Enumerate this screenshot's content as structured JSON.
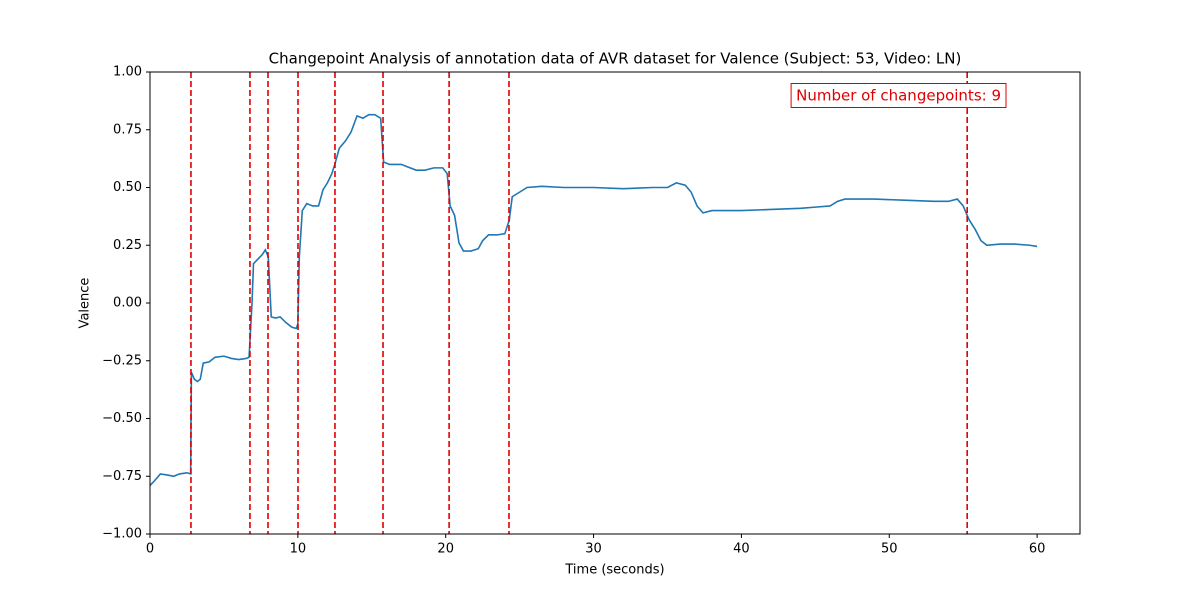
{
  "chart_data": {
    "type": "line",
    "title": "Changepoint Analysis of annotation data of AVR dataset for Valence (Subject: 53, Video: LN)",
    "xlabel": "Time (seconds)",
    "ylabel": "Valence",
    "annotation": "Number of changepoints: 9",
    "annotation_color": "#e00000",
    "xlim": [
      0,
      62.9
    ],
    "ylim": [
      -1,
      1
    ],
    "xticks": [
      0,
      10,
      20,
      30,
      40,
      50,
      60
    ],
    "yticks": [
      {
        "value": -1,
        "label": "−1.00"
      },
      {
        "value": -0.75,
        "label": "−0.75"
      },
      {
        "value": -0.5,
        "label": "−0.50"
      },
      {
        "value": -0.25,
        "label": "−0.25"
      },
      {
        "value": 0,
        "label": "0.00"
      },
      {
        "value": 0.25,
        "label": "0.25"
      },
      {
        "value": 0.5,
        "label": "0.50"
      },
      {
        "value": 0.75,
        "label": "0.75"
      },
      {
        "value": 1,
        "label": "1.00"
      }
    ],
    "changepoints": [
      2.77,
      6.76,
      7.98,
      10.01,
      12.51,
      15.76,
      20.23,
      24.28,
      55.27
    ],
    "changepoint_color": "#e00000",
    "x": [
      0,
      0.3,
      0.7,
      1.2,
      1.6,
      2.0,
      2.5,
      2.75,
      2.8,
      3.0,
      3.2,
      3.4,
      3.6,
      4.0,
      4.4,
      5.0,
      5.5,
      6.0,
      6.5,
      6.7,
      6.9,
      7.0,
      7.3,
      7.6,
      7.8,
      8.0,
      8.2,
      8.5,
      8.8,
      9.2,
      9.6,
      9.9,
      10.0,
      10.1,
      10.3,
      10.6,
      11.0,
      11.4,
      11.7,
      12.0,
      12.3,
      12.5,
      12.8,
      13.2,
      13.6,
      14.0,
      14.4,
      14.8,
      15.2,
      15.6,
      15.8,
      16.2,
      16.6,
      17.0,
      17.4,
      18.0,
      18.6,
      19.2,
      19.8,
      20.1,
      20.3,
      20.6,
      20.9,
      21.2,
      21.7,
      22.2,
      22.5,
      22.9,
      23.5,
      24.0,
      24.3,
      24.5,
      25.0,
      25.5,
      26.5,
      28,
      30,
      32,
      34,
      35,
      35.6,
      36.2,
      36.6,
      37.0,
      37.4,
      38,
      40,
      42,
      44,
      45,
      46,
      46.5,
      47,
      49,
      51,
      53,
      54,
      54.6,
      55.0,
      55.4,
      55.8,
      56.2,
      56.6,
      57.5,
      58.5,
      59.5,
      60
    ],
    "series": [
      {
        "name": "Valence",
        "color": "#1f77b4",
        "values": [
          -0.79,
          -0.77,
          -0.74,
          -0.745,
          -0.75,
          -0.74,
          -0.735,
          -0.74,
          -0.3,
          -0.33,
          -0.34,
          -0.33,
          -0.26,
          -0.255,
          -0.235,
          -0.23,
          -0.24,
          -0.245,
          -0.24,
          -0.235,
          0.0,
          0.17,
          0.19,
          0.21,
          0.23,
          0.2,
          -0.06,
          -0.065,
          -0.06,
          -0.085,
          -0.105,
          -0.11,
          -0.09,
          0.2,
          0.4,
          0.43,
          0.42,
          0.42,
          0.49,
          0.52,
          0.56,
          0.6,
          0.67,
          0.7,
          0.74,
          0.81,
          0.8,
          0.815,
          0.815,
          0.8,
          0.61,
          0.6,
          0.6,
          0.6,
          0.59,
          0.575,
          0.575,
          0.585,
          0.585,
          0.56,
          0.42,
          0.38,
          0.26,
          0.225,
          0.225,
          0.235,
          0.27,
          0.295,
          0.295,
          0.3,
          0.36,
          0.46,
          0.48,
          0.5,
          0.505,
          0.5,
          0.5,
          0.495,
          0.5,
          0.5,
          0.52,
          0.51,
          0.48,
          0.42,
          0.39,
          0.4,
          0.4,
          0.405,
          0.41,
          0.415,
          0.42,
          0.44,
          0.45,
          0.45,
          0.445,
          0.44,
          0.44,
          0.45,
          0.42,
          0.36,
          0.32,
          0.27,
          0.25,
          0.255,
          0.255,
          0.25,
          0.245
        ]
      }
    ]
  }
}
